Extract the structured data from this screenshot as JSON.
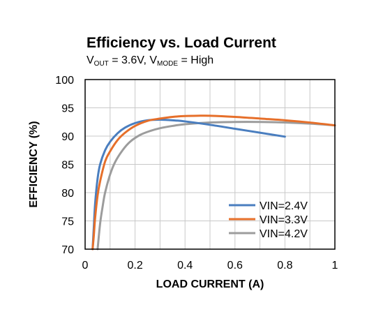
{
  "chart_data": {
    "type": "line",
    "title": "Efficiency vs. Load Current",
    "subtitle": {
      "v1": "V",
      "v1_sub": "OUT",
      "v1_rest": " = 3.6V, ",
      "v2": "V",
      "v2_sub": "MODE",
      "v2_rest": " = High"
    },
    "xlabel": "LOAD CURRENT (A)",
    "ylabel": "EFFICIENCY (%)",
    "xlim": [
      0,
      1
    ],
    "ylim": [
      70,
      100
    ],
    "xticks": [
      0,
      0.2,
      0.4,
      0.6,
      0.8,
      1
    ],
    "xtick_labels": [
      "0",
      "0.2",
      "0.4",
      "0.6",
      "0.8",
      "1"
    ],
    "yticks": [
      70,
      75,
      80,
      85,
      90,
      95,
      100
    ],
    "ytick_labels": [
      "70",
      "75",
      "80",
      "85",
      "90",
      "95",
      "100"
    ],
    "grid": true,
    "legend_position": "bottom-right",
    "series": [
      {
        "name": "VIN=2.4V",
        "color": "#4a7ebf",
        "x": [
          0.03,
          0.035,
          0.04,
          0.05,
          0.06,
          0.08,
          0.1,
          0.13,
          0.16,
          0.2,
          0.25,
          0.3,
          0.35,
          0.4,
          0.5,
          0.6,
          0.7,
          0.8
        ],
        "y": [
          70,
          74,
          78,
          82.5,
          85,
          87.5,
          89,
          90.5,
          91.5,
          92.3,
          92.8,
          92.9,
          92.8,
          92.6,
          92.0,
          91.3,
          90.6,
          89.9
        ]
      },
      {
        "name": "VIN=3.3V",
        "color": "#e66f2a",
        "x": [
          0.03,
          0.035,
          0.04,
          0.05,
          0.06,
          0.08,
          0.1,
          0.13,
          0.16,
          0.2,
          0.25,
          0.3,
          0.35,
          0.4,
          0.45,
          0.5,
          0.6,
          0.7,
          0.8,
          0.9,
          1.0
        ],
        "y": [
          70,
          72.5,
          75.5,
          79.5,
          82,
          85.5,
          87.3,
          89.3,
          90.6,
          91.8,
          92.7,
          93.1,
          93.4,
          93.55,
          93.6,
          93.6,
          93.4,
          93.1,
          92.8,
          92.4,
          91.9
        ]
      },
      {
        "name": "VIN=4.2V",
        "color": "#9c9c9c",
        "x": [
          0.05,
          0.06,
          0.07,
          0.08,
          0.1,
          0.12,
          0.15,
          0.18,
          0.22,
          0.26,
          0.3,
          0.35,
          0.4,
          0.5,
          0.6,
          0.7,
          0.8,
          0.9,
          1.0
        ],
        "y": [
          70,
          74.5,
          77.5,
          80,
          83.2,
          85.4,
          87.5,
          89,
          90.2,
          90.9,
          91.4,
          91.8,
          92.1,
          92.4,
          92.5,
          92.5,
          92.4,
          92.2,
          91.9
        ]
      }
    ]
  }
}
